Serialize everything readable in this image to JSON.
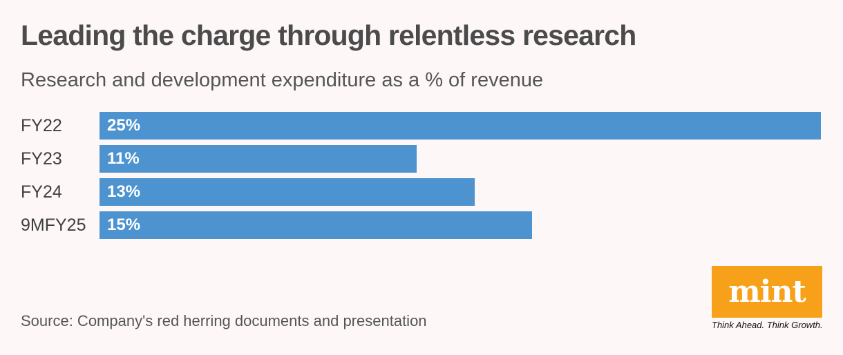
{
  "title": "Leading the charge through relentless research",
  "subtitle": "Research and development expenditure as a % of revenue",
  "source": "Source: Company's red herring documents and presentation",
  "logo": {
    "text": "mint",
    "tagline": "Think Ahead. Think Growth."
  },
  "colors": {
    "bar": "#4c93d0",
    "logo_bg": "#f7a11a",
    "background": "#fdf8f7"
  },
  "chart_data": {
    "type": "bar",
    "orientation": "horizontal",
    "categories": [
      "FY22",
      "FY23",
      "FY24",
      "9MFY25"
    ],
    "values": [
      25,
      11,
      13,
      15
    ],
    "value_labels": [
      "25%",
      "11%",
      "13%",
      "15%"
    ],
    "unit": "%",
    "title": "Leading the charge through relentless research",
    "subtitle": "Research and development expenditure as a % of revenue",
    "xlabel": "",
    "ylabel": "",
    "xlim": [
      0,
      25
    ],
    "grid": false,
    "legend": "none"
  }
}
